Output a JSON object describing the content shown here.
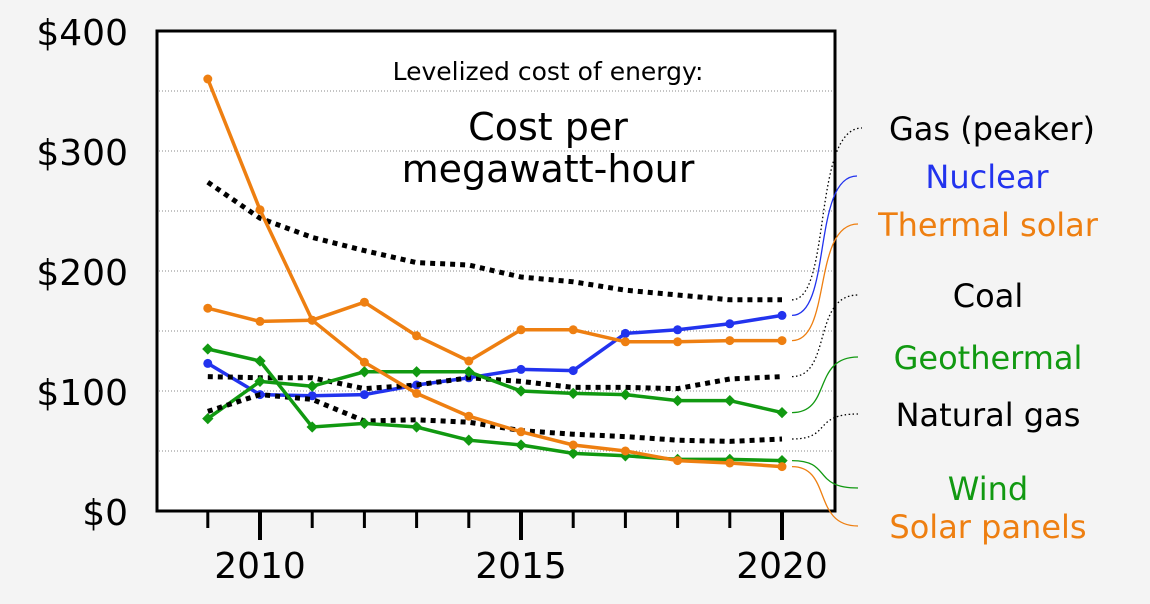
{
  "chart_data": {
    "type": "line",
    "title": "Levelized cost of energy:",
    "subtitle": [
      "Cost per",
      "megawatt-hour"
    ],
    "x": [
      2009,
      2010,
      2011,
      2012,
      2013,
      2014,
      2015,
      2016,
      2017,
      2018,
      2019,
      2020
    ],
    "xticks": [
      "2010",
      "2015",
      "2020"
    ],
    "yticks": [
      "$0",
      "$100",
      "$200",
      "$300",
      "$400"
    ],
    "ylim": [
      0,
      400
    ],
    "xlim": [
      2008,
      2021
    ],
    "grid": "horizontal dotted every $50",
    "series": [
      {
        "name": "Gas (peaker)",
        "color": "#000000",
        "style": "dotted",
        "values": [
          274,
          244,
          228,
          217,
          207,
          205,
          195,
          191,
          184,
          180,
          176,
          176
        ]
      },
      {
        "name": "Nuclear",
        "color": "#2233ee",
        "style": "solid-dot",
        "values": [
          123,
          97,
          96,
          97,
          105,
          111,
          118,
          117,
          148,
          151,
          156,
          163
        ]
      },
      {
        "name": "Thermal solar",
        "color": "#ee7f11",
        "style": "solid-dot",
        "values": [
          169,
          158,
          159,
          174,
          146,
          125,
          151,
          151,
          141,
          141,
          142,
          142
        ]
      },
      {
        "name": "Coal",
        "color": "#000000",
        "style": "dotted",
        "values": [
          112,
          111,
          111,
          102,
          105,
          111,
          108,
          103,
          103,
          102,
          110,
          112
        ]
      },
      {
        "name": "Geothermal",
        "color": "#119911",
        "style": "solid-diamond",
        "values": [
          77,
          108,
          104,
          116,
          116,
          116,
          100,
          98,
          97,
          92,
          92,
          82
        ]
      },
      {
        "name": "Natural gas",
        "color": "#000000",
        "style": "dotted",
        "values": [
          83,
          97,
          93,
          75,
          76,
          74,
          67,
          64,
          62,
          59,
          58,
          60
        ]
      },
      {
        "name": "Wind",
        "color": "#119911",
        "style": "solid-diamond",
        "values": [
          135,
          125,
          70,
          73,
          70,
          59,
          55,
          48,
          46,
          43,
          43,
          42
        ]
      },
      {
        "name": "Solar panels",
        "color": "#ee7f11",
        "style": "solid-dot",
        "values": [
          360,
          251,
          159,
          124,
          98,
          79,
          66,
          55,
          50,
          42,
          40,
          37
        ]
      }
    ]
  }
}
